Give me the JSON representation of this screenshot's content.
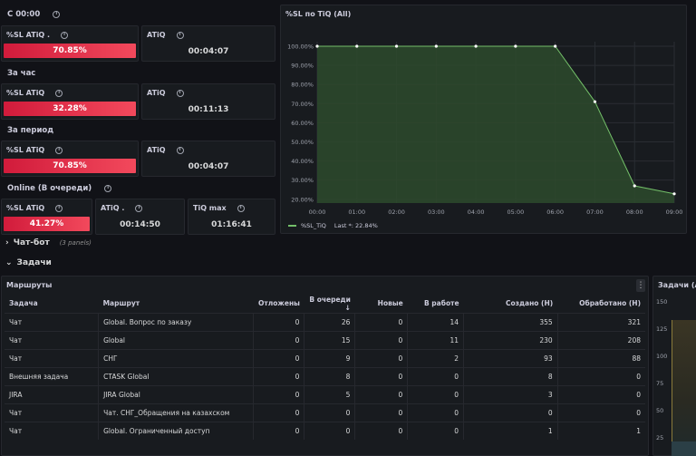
{
  "left": {
    "row1_title": "С 00:00",
    "row2_title": "За час",
    "row3_title": "За период",
    "row4_title": "Online (В очереди)",
    "p1": {
      "title": "%SL ATiQ .",
      "value": "70.85%"
    },
    "p2": {
      "title": "ATiQ",
      "value": "00:04:07"
    },
    "p3": {
      "title": "%SL ATiQ",
      "value": "32.28%"
    },
    "p4": {
      "title": "ATiQ",
      "value": "00:11:13"
    },
    "p5": {
      "title": "%SL ATiQ",
      "value": "70.85%"
    },
    "p6": {
      "title": "ATiQ",
      "value": "00:04:07"
    },
    "p7": {
      "title": "%SL ATiQ",
      "value": "41.27%"
    },
    "p8": {
      "title": "ATiQ .",
      "value": "00:14:50"
    },
    "p9": {
      "title": "TiQ max",
      "value": "01:16:41"
    }
  },
  "colors": {
    "red": "#f2495c",
    "green_line": "#73bf69",
    "green_fill": "#2d4a2d"
  },
  "chart_panel": {
    "title": "%SL по TiQ (All)",
    "legend_series": "%SL_TiQ",
    "legend_last": "Last *: 22.84%"
  },
  "chart_data": {
    "type": "area",
    "title": "%SL по TiQ (All)",
    "x": [
      "00:00",
      "01:00",
      "02:00",
      "03:00",
      "04:00",
      "05:00",
      "06:00",
      "07:00",
      "08:00",
      "09:00"
    ],
    "y_ticks": [
      "100.00%",
      "90.00%",
      "80.00%",
      "70.00%",
      "60.00%",
      "50.00%",
      "40.00%",
      "30.00%",
      "20.00%"
    ],
    "ylim": [
      18,
      100
    ],
    "series": [
      {
        "name": "%SL_TiQ",
        "values": [
          100,
          100,
          100,
          100,
          100,
          100,
          100,
          71,
          27,
          22.84
        ]
      }
    ]
  },
  "sections": {
    "chatbot": "Чат-бот",
    "chatbot_count": "(3 panels)",
    "tasks": "Задачи"
  },
  "table_panel": {
    "title": "Маршруты",
    "columns": [
      "Задача",
      "Маршрут",
      "Отложены",
      "В очереди ↓",
      "Новые",
      "В работе",
      "Создано (Н)",
      "Обработано (Н)"
    ],
    "rows": [
      [
        "Чат",
        "Global. Вопрос по заказу",
        "0",
        "26",
        "0",
        "14",
        "355",
        "321"
      ],
      [
        "Чат",
        "Global",
        "0",
        "15",
        "0",
        "11",
        "230",
        "208"
      ],
      [
        "Чат",
        "СНГ",
        "0",
        "9",
        "0",
        "2",
        "93",
        "88"
      ],
      [
        "Внешняя задача",
        "CTASK Global",
        "0",
        "8",
        "0",
        "0",
        "8",
        "0"
      ],
      [
        "JIRA",
        "JIRA Global",
        "0",
        "5",
        "0",
        "0",
        "3",
        "0"
      ],
      [
        "Чат",
        "Чат. СНГ_Обращения на казахском",
        "0",
        "0",
        "0",
        "0",
        "0",
        "0"
      ],
      [
        "Чат",
        "Global. Ограниченный доступ",
        "0",
        "0",
        "0",
        "0",
        "1",
        "1"
      ]
    ]
  },
  "right_panel": {
    "title": "Задачи (All)",
    "y_ticks": [
      "150",
      "125",
      "100",
      "75",
      "50",
      "25"
    ]
  }
}
